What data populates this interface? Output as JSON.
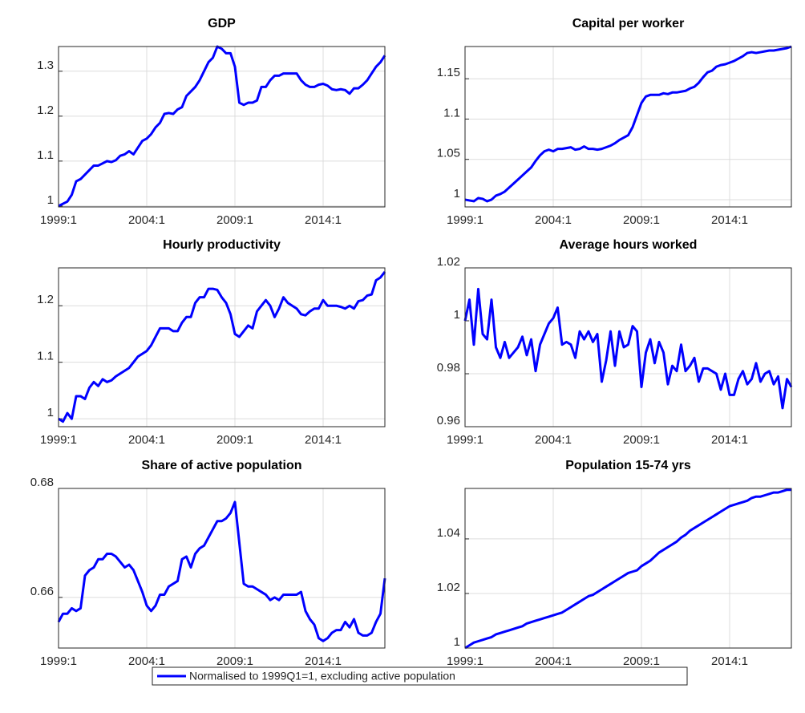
{
  "chart_data": [
    {
      "type": "line",
      "title": "GDP",
      "categories": [
        "1999:1",
        null,
        null,
        null,
        null,
        null,
        null,
        null,
        null,
        null,
        null,
        null,
        null,
        null,
        null,
        null,
        null,
        null,
        null,
        null,
        "2004:1",
        null,
        null,
        null,
        null,
        null,
        null,
        null,
        null,
        null,
        null,
        null,
        null,
        null,
        null,
        null,
        null,
        null,
        null,
        null,
        "2009:1",
        null,
        null,
        null,
        null,
        null,
        null,
        null,
        null,
        null,
        null,
        null,
        null,
        null,
        null,
        null,
        null,
        null,
        null,
        null,
        "2014:1",
        null,
        null,
        null,
        null,
        null,
        null,
        null,
        null,
        null,
        null,
        null,
        null,
        null,
        null
      ],
      "series": [
        {
          "name": "Normalised to 1999Q1=1, excluding active population",
          "color": "#0000ff",
          "values": [
            1.0,
            1.005,
            1.01,
            1.025,
            1.055,
            1.06,
            1.07,
            1.08,
            1.09,
            1.09,
            1.095,
            1.1,
            1.098,
            1.102,
            1.112,
            1.115,
            1.122,
            1.115,
            1.13,
            1.145,
            1.15,
            1.16,
            1.175,
            1.185,
            1.205,
            1.207,
            1.205,
            1.215,
            1.22,
            1.245,
            1.255,
            1.265,
            1.28,
            1.3,
            1.32,
            1.33,
            1.355,
            1.35,
            1.34,
            1.34,
            1.31,
            1.23,
            1.225,
            1.23,
            1.23,
            1.235,
            1.265,
            1.265,
            1.28,
            1.29,
            1.29,
            1.295,
            1.295,
            1.295,
            1.295,
            1.28,
            1.27,
            1.265,
            1.265,
            1.27,
            1.272,
            1.268,
            1.26,
            1.258,
            1.26,
            1.258,
            1.25,
            1.262,
            1.262,
            1.27,
            1.28,
            1.295,
            1.31,
            1.32,
            1.335
          ]
        }
      ],
      "ylim": [
        0.998,
        1.355
      ],
      "yticks": [
        1,
        1.1,
        1.2,
        1.3
      ],
      "grid": true
    },
    {
      "type": "line",
      "title": "Capital per worker",
      "categories": [
        "1999:1",
        null,
        null,
        null,
        null,
        null,
        null,
        null,
        null,
        null,
        null,
        null,
        null,
        null,
        null,
        null,
        null,
        null,
        null,
        null,
        "2004:1",
        null,
        null,
        null,
        null,
        null,
        null,
        null,
        null,
        null,
        null,
        null,
        null,
        null,
        null,
        null,
        null,
        null,
        null,
        null,
        "2009:1",
        null,
        null,
        null,
        null,
        null,
        null,
        null,
        null,
        null,
        null,
        null,
        null,
        null,
        null,
        null,
        null,
        null,
        null,
        null,
        "2014:1",
        null,
        null,
        null,
        null,
        null,
        null,
        null,
        null,
        null,
        null,
        null,
        null,
        null,
        null
      ],
      "series": [
        {
          "color": "#0000ff",
          "values": [
            1.0,
            0.999,
            0.998,
            1.002,
            1.001,
            0.998,
            1.0,
            1.005,
            1.007,
            1.01,
            1.015,
            1.02,
            1.025,
            1.03,
            1.035,
            1.04,
            1.048,
            1.055,
            1.06,
            1.062,
            1.06,
            1.063,
            1.063,
            1.064,
            1.065,
            1.062,
            1.063,
            1.066,
            1.063,
            1.063,
            1.062,
            1.063,
            1.065,
            1.067,
            1.07,
            1.074,
            1.077,
            1.08,
            1.09,
            1.105,
            1.12,
            1.128,
            1.13,
            1.13,
            1.13,
            1.132,
            1.131,
            1.133,
            1.133,
            1.134,
            1.135,
            1.138,
            1.14,
            1.145,
            1.152,
            1.158,
            1.16,
            1.165,
            1.167,
            1.168,
            1.17,
            1.172,
            1.175,
            1.178,
            1.182,
            1.183,
            1.182,
            1.183,
            1.184,
            1.185,
            1.185,
            1.186,
            1.187,
            1.188,
            1.19
          ]
        }
      ],
      "ylim": [
        0.991,
        1.19
      ],
      "yticks": [
        1,
        1.05,
        1.1,
        1.15
      ],
      "grid": true
    },
    {
      "type": "line",
      "title": "Hourly productivity",
      "categories": [
        "1999:1",
        null,
        null,
        null,
        null,
        null,
        null,
        null,
        null,
        null,
        null,
        null,
        null,
        null,
        null,
        null,
        null,
        null,
        null,
        null,
        "2004:1",
        null,
        null,
        null,
        null,
        null,
        null,
        null,
        null,
        null,
        null,
        null,
        null,
        null,
        null,
        null,
        null,
        null,
        null,
        null,
        "2009:1",
        null,
        null,
        null,
        null,
        null,
        null,
        null,
        null,
        null,
        null,
        null,
        null,
        null,
        null,
        null,
        null,
        null,
        null,
        null,
        "2014:1",
        null,
        null,
        null,
        null,
        null,
        null,
        null,
        null,
        null,
        null,
        null,
        null,
        null,
        null
      ],
      "series": [
        {
          "color": "#0000ff",
          "values": [
            1.0,
            0.995,
            1.01,
            1.0,
            1.04,
            1.04,
            1.035,
            1.055,
            1.065,
            1.058,
            1.07,
            1.065,
            1.068,
            1.075,
            1.08,
            1.085,
            1.09,
            1.1,
            1.11,
            1.115,
            1.12,
            1.13,
            1.145,
            1.16,
            1.16,
            1.16,
            1.155,
            1.155,
            1.17,
            1.18,
            1.18,
            1.205,
            1.215,
            1.215,
            1.23,
            1.23,
            1.228,
            1.215,
            1.205,
            1.185,
            1.15,
            1.145,
            1.155,
            1.165,
            1.16,
            1.19,
            1.2,
            1.21,
            1.2,
            1.18,
            1.195,
            1.215,
            1.205,
            1.2,
            1.195,
            1.185,
            1.183,
            1.19,
            1.195,
            1.195,
            1.21,
            1.2,
            1.2,
            1.2,
            1.198,
            1.195,
            1.2,
            1.195,
            1.208,
            1.21,
            1.218,
            1.22,
            1.245,
            1.25,
            1.26
          ]
        }
      ],
      "ylim": [
        0.986,
        1.267
      ],
      "yticks": [
        1,
        1.1,
        1.2
      ],
      "grid": true
    },
    {
      "type": "line",
      "title": "Average hours worked",
      "categories": [
        "1999:1",
        null,
        null,
        null,
        null,
        null,
        null,
        null,
        null,
        null,
        null,
        null,
        null,
        null,
        null,
        null,
        null,
        null,
        null,
        null,
        "2004:1",
        null,
        null,
        null,
        null,
        null,
        null,
        null,
        null,
        null,
        null,
        null,
        null,
        null,
        null,
        null,
        null,
        null,
        null,
        null,
        "2009:1",
        null,
        null,
        null,
        null,
        null,
        null,
        null,
        null,
        null,
        null,
        null,
        null,
        null,
        null,
        null,
        null,
        null,
        null,
        null,
        "2014:1",
        null,
        null,
        null,
        null,
        null,
        null,
        null,
        null,
        null,
        null,
        null,
        null,
        null,
        null
      ],
      "series": [
        {
          "color": "#0000ff",
          "values": [
            1.0,
            1.008,
            0.991,
            1.012,
            0.995,
            0.993,
            1.008,
            0.99,
            0.986,
            0.992,
            0.986,
            0.988,
            0.99,
            0.994,
            0.987,
            0.993,
            0.981,
            0.991,
            0.995,
            0.999,
            1.001,
            1.005,
            0.991,
            0.992,
            0.991,
            0.986,
            0.996,
            0.993,
            0.996,
            0.992,
            0.995,
            0.977,
            0.985,
            0.996,
            0.983,
            0.996,
            0.99,
            0.991,
            0.998,
            0.996,
            0.975,
            0.988,
            0.993,
            0.984,
            0.992,
            0.988,
            0.976,
            0.983,
            0.981,
            0.991,
            0.981,
            0.983,
            0.986,
            0.977,
            0.982,
            0.982,
            0.981,
            0.98,
            0.974,
            0.98,
            0.972,
            0.972,
            0.978,
            0.981,
            0.976,
            0.978,
            0.984,
            0.977,
            0.98,
            0.981,
            0.976,
            0.979,
            0.967,
            0.978,
            0.975
          ]
        }
      ],
      "ylim": [
        0.96,
        1.02
      ],
      "yticks": [
        0.96,
        0.98,
        1,
        1.02
      ],
      "grid": true
    },
    {
      "type": "line",
      "title": "Share of active population",
      "categories": [
        "1999:1",
        null,
        null,
        null,
        null,
        null,
        null,
        null,
        null,
        null,
        null,
        null,
        null,
        null,
        null,
        null,
        null,
        null,
        null,
        null,
        "2004:1",
        null,
        null,
        null,
        null,
        null,
        null,
        null,
        null,
        null,
        null,
        null,
        null,
        null,
        null,
        null,
        null,
        null,
        null,
        null,
        "2009:1",
        null,
        null,
        null,
        null,
        null,
        null,
        null,
        null,
        null,
        null,
        null,
        null,
        null,
        null,
        null,
        null,
        null,
        null,
        null,
        "2014:1",
        null,
        null,
        null,
        null,
        null,
        null,
        null,
        null,
        null,
        null,
        null,
        null,
        null,
        null
      ],
      "series": [
        {
          "color": "#0000ff",
          "values": [
            0.6555,
            0.657,
            0.657,
            0.658,
            0.6575,
            0.658,
            0.664,
            0.665,
            0.6655,
            0.667,
            0.667,
            0.668,
            0.668,
            0.6675,
            0.6665,
            0.6655,
            0.666,
            0.665,
            0.663,
            0.661,
            0.6585,
            0.6575,
            0.6585,
            0.6605,
            0.6605,
            0.662,
            0.6625,
            0.663,
            0.667,
            0.6675,
            0.6655,
            0.668,
            0.669,
            0.6695,
            0.671,
            0.6725,
            0.674,
            0.674,
            0.6745,
            0.6755,
            0.6775,
            0.67,
            0.6625,
            0.662,
            0.662,
            0.6615,
            0.661,
            0.6605,
            0.6595,
            0.66,
            0.6595,
            0.6605,
            0.6605,
            0.6605,
            0.6605,
            0.661,
            0.6575,
            0.656,
            0.655,
            0.6525,
            0.652,
            0.6525,
            0.6535,
            0.654,
            0.654,
            0.6555,
            0.6545,
            0.656,
            0.6535,
            0.653,
            0.653,
            0.6535,
            0.6555,
            0.657,
            0.6635
          ]
        }
      ],
      "ylim": [
        0.6507,
        0.68
      ],
      "yticks": [
        0.66,
        0.68
      ],
      "grid": true
    },
    {
      "type": "line",
      "title": "Population 15-74 yrs",
      "categories": [
        "1999:1",
        null,
        null,
        null,
        null,
        null,
        null,
        null,
        null,
        null,
        null,
        null,
        null,
        null,
        null,
        null,
        null,
        null,
        null,
        null,
        "2004:1",
        null,
        null,
        null,
        null,
        null,
        null,
        null,
        null,
        null,
        null,
        null,
        null,
        null,
        null,
        null,
        null,
        null,
        null,
        null,
        "2009:1",
        null,
        null,
        null,
        null,
        null,
        null,
        null,
        null,
        null,
        null,
        null,
        null,
        null,
        null,
        null,
        null,
        null,
        null,
        null,
        "2014:1",
        null,
        null,
        null,
        null,
        null,
        null,
        null,
        null,
        null,
        null,
        null,
        null,
        null,
        null
      ],
      "series": [
        {
          "color": "#0000ff",
          "values": [
            1.0,
            1.001,
            1.002,
            1.0025,
            1.003,
            1.0035,
            1.004,
            1.005,
            1.0055,
            1.006,
            1.0065,
            1.007,
            1.0075,
            1.008,
            1.009,
            1.0095,
            1.01,
            1.0105,
            1.011,
            1.0115,
            1.012,
            1.0125,
            1.013,
            1.014,
            1.015,
            1.016,
            1.017,
            1.018,
            1.019,
            1.0195,
            1.0205,
            1.0215,
            1.0225,
            1.0235,
            1.0245,
            1.0255,
            1.0265,
            1.0275,
            1.028,
            1.0285,
            1.03,
            1.031,
            1.032,
            1.0335,
            1.035,
            1.036,
            1.037,
            1.038,
            1.039,
            1.0405,
            1.0415,
            1.043,
            1.044,
            1.045,
            1.046,
            1.047,
            1.048,
            1.049,
            1.05,
            1.051,
            1.052,
            1.0525,
            1.053,
            1.0535,
            1.054,
            1.055,
            1.0555,
            1.0555,
            1.056,
            1.0565,
            1.057,
            1.057,
            1.0575,
            1.058,
            1.058
          ]
        }
      ],
      "ylim": [
        1,
        1.0585
      ],
      "yticks": [
        1,
        1.02,
        1.04
      ],
      "grid": true
    }
  ]
}
